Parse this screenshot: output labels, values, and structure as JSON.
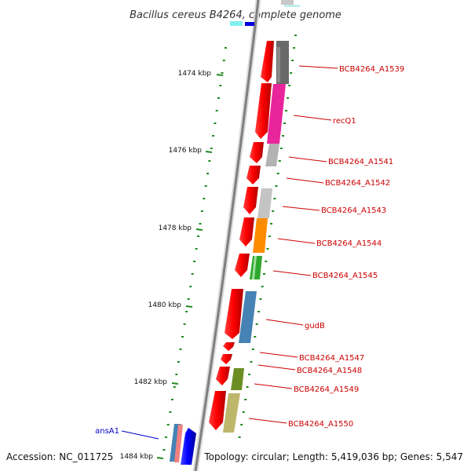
{
  "title": "Bacillus cereus B4264, complete genome",
  "footer": {
    "accession": "Accession: NC_011725",
    "topology": "Topology: circular; Length: 5,419,036 bp; Genes: 5,547"
  },
  "colors": {
    "backbone": "#7f7f7f",
    "tick": "#1f8a1f",
    "forward_label": "#cc0000",
    "reverse_label": "#0000cc"
  },
  "ticks": [
    {
      "label": "1474 kbp"
    },
    {
      "label": "1476 kbp"
    },
    {
      "label": "1478 kbp"
    },
    {
      "label": "1480 kbp"
    },
    {
      "label": "1482 kbp"
    },
    {
      "label": "1484 kbp"
    }
  ],
  "genes": [
    {
      "label": "BCB4264_A1539",
      "color": "#696969"
    },
    {
      "label": "recQ1",
      "color": "#e8259a"
    },
    {
      "label": "BCB4264_A1541",
      "color": "#b3b3b3"
    },
    {
      "label": "BCB4264_A1542",
      "color": ""
    },
    {
      "label": "BCB4264_A1543",
      "color": "#c4c4c4"
    },
    {
      "label": "BCB4264_A1544",
      "color": "#ff8c00"
    },
    {
      "label": "BCB4264_A1545",
      "color": "#2ea82e"
    },
    {
      "label": "gudB",
      "color": "#4682b4"
    },
    {
      "label": "BCB4264_A1547",
      "color": ""
    },
    {
      "label": "BCB4264_A1548",
      "color": ""
    },
    {
      "label": "BCB4264_A1549",
      "color": "#6b8e23"
    },
    {
      "label": "BCB4264_A1550",
      "color": "#bdb76b"
    },
    {
      "label": "ansA1",
      "color": "#0000ff"
    }
  ]
}
